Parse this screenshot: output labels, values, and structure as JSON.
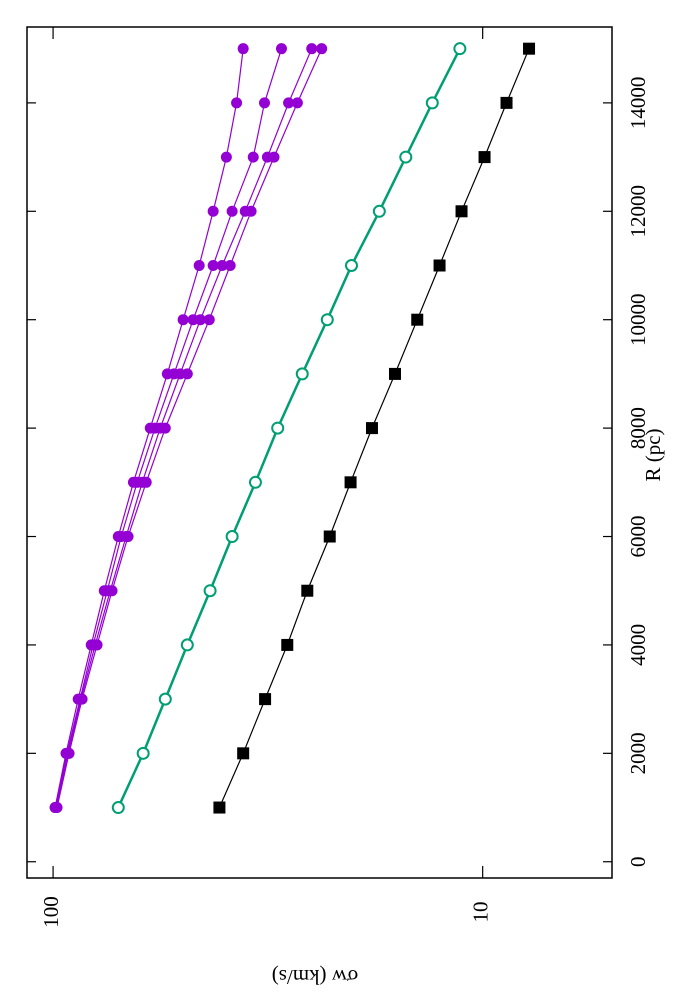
{
  "chart_data": {
    "type": "line",
    "rotated": true,
    "xlabel": "R (pc)",
    "ylabel": "σw (km/s)",
    "x": [
      1000,
      2000,
      3000,
      4000,
      5000,
      6000,
      7000,
      8000,
      9000,
      10000,
      11000,
      12000,
      13000,
      14000,
      15000
    ],
    "xlim": [
      -300,
      15400
    ],
    "xticks": [
      0,
      2000,
      4000,
      6000,
      8000,
      10000,
      12000,
      14000
    ],
    "ylim": [
      5,
      115
    ],
    "yticks": [
      10,
      100
    ],
    "ylog": true,
    "series": [
      {
        "color": "#9400d3",
        "marker": "filled-circle",
        "values": [
          98.9,
          93.3,
          87.4,
          81.5,
          76.0,
          70.5,
          65.0,
          59.4,
          54.2,
          49.8,
          45.7,
          42.4,
          39.5,
          37.4,
          36.1
        ]
      },
      {
        "color": "#9400d3",
        "marker": "filled-circle",
        "values": [
          98.9,
          92.8,
          86.5,
          80.7,
          74.8,
          69.4,
          63.7,
          57.9,
          52.3,
          47.2,
          42.4,
          38.3,
          34.2,
          32.2,
          29.4
        ]
      },
      {
        "color": "#9400d3",
        "marker": "filled-circle",
        "values": [
          98.4,
          92.3,
          86.1,
          79.8,
          73.6,
          67.6,
          62.0,
          56.3,
          50.6,
          45.4,
          40.4,
          35.7,
          31.7,
          28.3,
          25.0
        ]
      },
      {
        "color": "#9400d3",
        "marker": "filled-circle",
        "values": [
          97.9,
          91.8,
          85.6,
          79.0,
          72.9,
          66.9,
          60.7,
          54.8,
          48.7,
          43.3,
          38.7,
          34.6,
          30.6,
          27.0,
          23.7
        ]
      },
      {
        "color": "#009e73",
        "marker": "open-circle",
        "values": [
          70.5,
          61.7,
          54.8,
          48.7,
          43.1,
          38.3,
          33.8,
          30.0,
          26.3,
          23.0,
          20.2,
          17.4,
          15.1,
          13.1,
          11.3
        ]
      },
      {
        "color": "#000000",
        "marker": "square",
        "values": [
          41.0,
          36.1,
          32.1,
          28.5,
          25.6,
          22.7,
          20.3,
          18.1,
          16.0,
          14.2,
          12.6,
          11.2,
          9.9,
          8.8,
          7.8
        ]
      }
    ]
  }
}
